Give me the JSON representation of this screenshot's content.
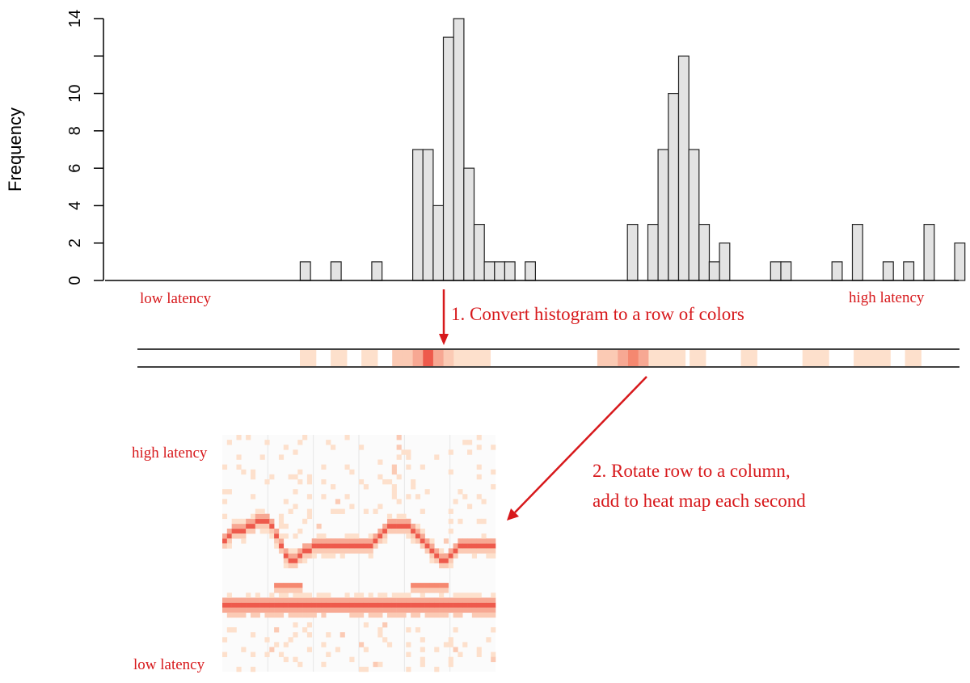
{
  "labels": {
    "ylabel": "Frequency",
    "low_latency_row": "low latency",
    "high_latency_row": "high latency",
    "step1": "1. Convert histogram to a row of colors",
    "step2_line1": "2. Rotate row to a column,",
    "step2_line2": "add to heat map each second",
    "heatmap_high": "high latency",
    "heatmap_low": "low latency"
  },
  "colors": {
    "bar_fill": "#e3e3e3",
    "bar_stroke": "#222222",
    "annotation": "#d7191c"
  },
  "chart_data": {
    "type": "bar",
    "ylabel": "Frequency",
    "ylim": [
      0,
      14
    ],
    "yticks": [
      0,
      2,
      4,
      6,
      8,
      10,
      12,
      14
    ],
    "ytick_labels": [
      "0",
      "2",
      "4",
      "6",
      "8",
      "10",
      "",
      "14"
    ],
    "bin_count": 81,
    "bins": [
      16,
      19,
      23,
      27,
      28,
      29,
      30,
      31,
      32,
      33,
      34,
      35,
      36,
      38,
      48,
      50,
      51,
      52,
      53,
      54,
      55,
      56,
      57,
      62,
      63,
      68,
      70,
      73,
      75,
      77,
      80,
      81,
      82
    ],
    "values": [
      1,
      1,
      1,
      7,
      7,
      4,
      13,
      14,
      6,
      3,
      1,
      1,
      1,
      1,
      3,
      3,
      7,
      10,
      12,
      7,
      3,
      1,
      2,
      1,
      1,
      1,
      3,
      1,
      1,
      3,
      2,
      0,
      0
    ]
  },
  "color_row": {
    "cells": [
      {
        "bin": 16,
        "level": 1
      },
      {
        "bin": 19,
        "level": 1
      },
      {
        "bin": 22,
        "level": 1
      },
      {
        "bin": 25,
        "level": 2
      },
      {
        "bin": 26,
        "level": 2
      },
      {
        "bin": 27,
        "level": 3
      },
      {
        "bin": 28,
        "level": 5
      },
      {
        "bin": 29,
        "level": 3
      },
      {
        "bin": 30,
        "level": 2
      },
      {
        "bin": 31,
        "level": 1
      },
      {
        "bin": 32,
        "level": 1
      },
      {
        "bin": 33,
        "level": 1
      },
      {
        "bin": 45,
        "level": 2
      },
      {
        "bin": 46,
        "level": 2
      },
      {
        "bin": 47,
        "level": 3
      },
      {
        "bin": 48,
        "level": 4
      },
      {
        "bin": 49,
        "level": 3
      },
      {
        "bin": 50,
        "level": 1
      },
      {
        "bin": 51,
        "level": 1
      },
      {
        "bin": 52,
        "level": 1
      },
      {
        "bin": 54,
        "level": 1
      },
      {
        "bin": 59,
        "level": 1
      },
      {
        "bin": 65,
        "level": 1
      },
      {
        "bin": 66,
        "level": 1
      },
      {
        "bin": 70,
        "level": 1
      },
      {
        "bin": 71,
        "level": 1
      },
      {
        "bin": 72,
        "level": 1
      },
      {
        "bin": 75,
        "level": 1
      }
    ]
  },
  "heatmap": {
    "columns": 58,
    "rows": 48,
    "upper_band_profile": [
      21,
      20,
      19,
      19,
      19,
      18,
      18,
      17,
      17,
      17,
      18,
      20,
      22,
      24,
      25,
      25,
      24,
      23,
      23,
      22,
      22,
      22,
      22,
      22,
      22,
      22,
      22,
      22,
      22,
      22,
      22,
      22,
      21,
      20,
      19,
      18,
      18,
      18,
      18,
      18,
      19,
      20,
      21,
      22,
      23,
      24,
      25,
      25,
      24,
      23,
      22,
      22,
      22,
      22,
      22,
      22,
      22,
      22
    ],
    "lower_band_row": 34,
    "mid_band_row": 30
  }
}
